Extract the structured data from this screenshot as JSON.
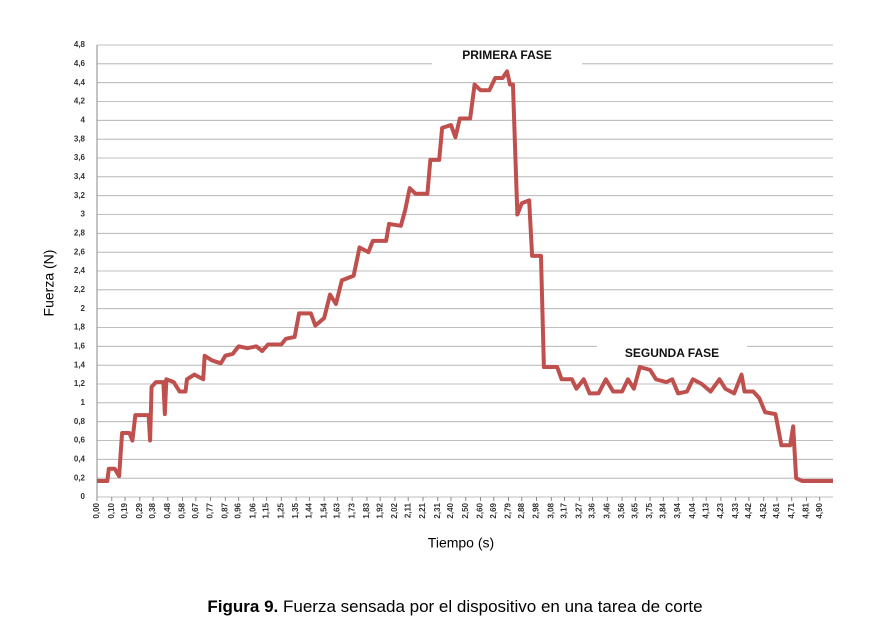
{
  "chart_data": {
    "type": "line",
    "x_label": "Tiempo (s)",
    "y_label": "Fuerza (N)",
    "annotations": [
      "PRIMERA FASE",
      "SEGUNDA FASE"
    ],
    "x": [
      0,
      0.07,
      0.08,
      0.12,
      0.15,
      0.17,
      0.22,
      0.24,
      0.26,
      0.35,
      0.36,
      0.37,
      0.4,
      0.45,
      0.46,
      0.47,
      0.52,
      0.56,
      0.6,
      0.61,
      0.66,
      0.72,
      0.73,
      0.78,
      0.84,
      0.87,
      0.92,
      0.96,
      1.02,
      1.08,
      1.12,
      1.16,
      1.25,
      1.28,
      1.34,
      1.37,
      1.45,
      1.48,
      1.54,
      1.58,
      1.62,
      1.66,
      1.74,
      1.78,
      1.84,
      1.87,
      1.96,
      1.98,
      2.06,
      2.09,
      2.12,
      2.16,
      2.24,
      2.26,
      2.32,
      2.34,
      2.4,
      2.43,
      2.46,
      2.53,
      2.56,
      2.6,
      2.66,
      2.7,
      2.75,
      2.78,
      2.8,
      2.82,
      2.85,
      2.88,
      2.93,
      2.95,
      3.01,
      3.03,
      3.12,
      3.15,
      3.22,
      3.25,
      3.3,
      3.34,
      3.4,
      3.45,
      3.5,
      3.56,
      3.6,
      3.64,
      3.68,
      3.75,
      3.79,
      3.86,
      3.9,
      3.94,
      4.0,
      4.04,
      4.1,
      4.16,
      4.22,
      4.26,
      4.32,
      4.37,
      4.39,
      4.45,
      4.49,
      4.53,
      4.6,
      4.64,
      4.7,
      4.72,
      4.74,
      4.78,
      4.99
    ],
    "series": [
      {
        "color": "#c0504d",
        "values": [
          0.17,
          0.17,
          0.3,
          0.3,
          0.22,
          0.68,
          0.68,
          0.6,
          0.87,
          0.87,
          0.6,
          1.17,
          1.22,
          1.22,
          0.88,
          1.25,
          1.22,
          1.12,
          1.12,
          1.25,
          1.3,
          1.25,
          1.5,
          1.45,
          1.42,
          1.5,
          1.52,
          1.6,
          1.58,
          1.6,
          1.55,
          1.62,
          1.62,
          1.68,
          1.7,
          1.95,
          1.95,
          1.82,
          1.9,
          2.15,
          2.05,
          2.3,
          2.35,
          2.65,
          2.6,
          2.72,
          2.72,
          2.9,
          2.88,
          3.05,
          3.28,
          3.22,
          3.22,
          3.58,
          3.58,
          3.92,
          3.95,
          3.82,
          4.02,
          4.02,
          4.38,
          4.32,
          4.32,
          4.45,
          4.45,
          4.52,
          4.38,
          4.38,
          3.0,
          3.12,
          3.15,
          2.56,
          2.56,
          1.38,
          1.38,
          1.25,
          1.25,
          1.15,
          1.25,
          1.1,
          1.1,
          1.25,
          1.12,
          1.12,
          1.25,
          1.15,
          1.38,
          1.35,
          1.25,
          1.22,
          1.25,
          1.1,
          1.12,
          1.25,
          1.2,
          1.12,
          1.25,
          1.15,
          1.1,
          1.3,
          1.12,
          1.12,
          1.05,
          0.9,
          0.88,
          0.55,
          0.55,
          0.75,
          0.2,
          0.17,
          0.17
        ]
      }
    ],
    "xlim": [
      0,
      4.99
    ],
    "ylim": [
      0,
      4.8
    ],
    "yticks": [
      0,
      {
        "value": 0.2,
        "label": "0,2"
      },
      {
        "value": 0.4,
        "label": "0,4"
      },
      {
        "value": 0.6,
        "label": "0,6"
      },
      {
        "value": 0.8,
        "label": "0,8"
      },
      1,
      {
        "value": 1.2,
        "label": "1,2"
      },
      {
        "value": 1.4,
        "label": "1,4"
      },
      {
        "value": 1.6,
        "label": "1,6"
      },
      {
        "value": 1.8,
        "label": "1,8"
      },
      2,
      {
        "value": 2.2,
        "label": "2,2"
      },
      {
        "value": 2.4,
        "label": "2,4"
      },
      {
        "value": 2.6,
        "label": "2,6"
      },
      {
        "value": 2.8,
        "label": "2,8"
      },
      3,
      {
        "value": 3.2,
        "label": "3,2"
      },
      {
        "value": 3.4,
        "label": "3,4"
      },
      {
        "value": 3.6,
        "label": "3,6"
      },
      {
        "value": 3.8,
        "label": "3,8"
      },
      4,
      {
        "value": 4.2,
        "label": "4,2"
      },
      {
        "value": 4.4,
        "label": "4,4"
      },
      {
        "value": 4.6,
        "label": "4,6"
      },
      {
        "value": 4.8,
        "label": "4,8"
      }
    ],
    "xticks": [
      {
        "value": 0,
        "label": "0,00"
      },
      {
        "value": 0.1,
        "label": "0,10"
      },
      {
        "value": 0.19,
        "label": "0,19"
      },
      {
        "value": 0.29,
        "label": "0,29"
      },
      {
        "value": 0.38,
        "label": "0,38"
      },
      {
        "value": 0.48,
        "label": "0,48"
      },
      {
        "value": 0.58,
        "label": "0,58"
      },
      {
        "value": 0.67,
        "label": "0,67"
      },
      {
        "value": 0.77,
        "label": "0,77"
      },
      {
        "value": 0.87,
        "label": "0,87"
      },
      {
        "value": 0.96,
        "label": "0,96"
      },
      {
        "value": 1.06,
        "label": "1,06"
      },
      {
        "value": 1.15,
        "label": "1,15"
      },
      {
        "value": 1.25,
        "label": "1,25"
      },
      {
        "value": 1.35,
        "label": "1,35"
      },
      {
        "value": 1.44,
        "label": "1,44"
      },
      {
        "value": 1.54,
        "label": "1,54"
      },
      {
        "value": 1.63,
        "label": "1,63"
      },
      {
        "value": 1.73,
        "label": "1,73"
      },
      {
        "value": 1.83,
        "label": "1,83"
      },
      {
        "value": 1.92,
        "label": "1,92"
      },
      {
        "value": 2.02,
        "label": "2,02"
      },
      {
        "value": 2.11,
        "label": "2,11"
      },
      {
        "value": 2.21,
        "label": "2,21"
      },
      {
        "value": 2.31,
        "label": "2,31"
      },
      {
        "value": 2.4,
        "label": "2,40"
      },
      {
        "value": 2.5,
        "label": "2,50"
      },
      {
        "value": 2.6,
        "label": "2,60"
      },
      {
        "value": 2.69,
        "label": "2,69"
      },
      {
        "value": 2.79,
        "label": "2,79"
      },
      {
        "value": 2.88,
        "label": "2,88"
      },
      {
        "value": 2.98,
        "label": "2,98"
      },
      {
        "value": 3.08,
        "label": "3,08"
      },
      {
        "value": 3.17,
        "label": "3,17"
      },
      {
        "value": 3.27,
        "label": "3,27"
      },
      {
        "value": 3.36,
        "label": "3,36"
      },
      {
        "value": 3.46,
        "label": "3,46"
      },
      {
        "value": 3.56,
        "label": "3,56"
      },
      {
        "value": 3.65,
        "label": "3,65"
      },
      {
        "value": 3.75,
        "label": "3,75"
      },
      {
        "value": 3.84,
        "label": "3,84"
      },
      {
        "value": 3.94,
        "label": "3,94"
      },
      {
        "value": 4.04,
        "label": "4,04"
      },
      {
        "value": 4.13,
        "label": "4,13"
      },
      {
        "value": 4.23,
        "label": "4,23"
      },
      {
        "value": 4.33,
        "label": "4,33"
      },
      {
        "value": 4.42,
        "label": "4,42"
      },
      {
        "value": 4.52,
        "label": "4,52"
      },
      {
        "value": 4.61,
        "label": "4,61"
      },
      {
        "value": 4.71,
        "label": "4,71"
      },
      {
        "value": 4.81,
        "label": "4,81"
      },
      {
        "value": 4.9,
        "label": "4,90"
      }
    ],
    "grid": true
  },
  "caption": {
    "label": "Figura 9.",
    "text": "Fuerza sensada por el dispositivo en una tarea de corte"
  }
}
